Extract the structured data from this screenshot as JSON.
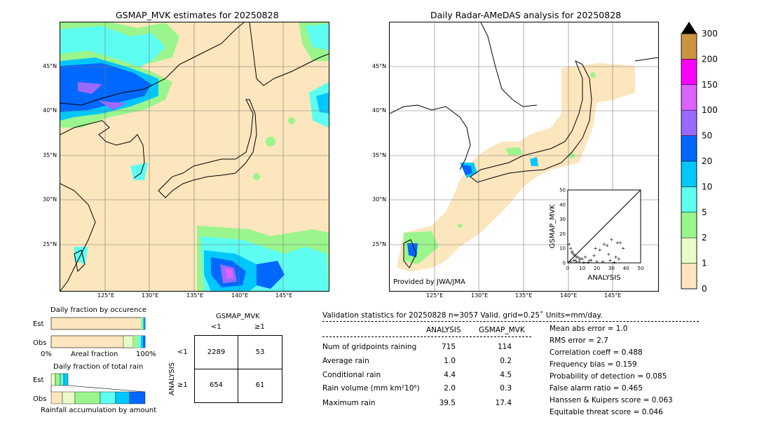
{
  "map_left": {
    "title": "GSMAP_MVK estimates for 20250828",
    "lat_labels": [
      "45°N",
      "40°N",
      "35°N",
      "30°N",
      "25°N"
    ],
    "lon_labels": [
      "125°E",
      "130°E",
      "135°E",
      "140°E",
      "145°E"
    ]
  },
  "map_right": {
    "title": "Daily Radar-AMeDAS analysis for 20250828",
    "lat_labels": [
      "45°N",
      "40°N",
      "35°N",
      "30°N",
      "25°N"
    ],
    "lon_labels": [
      "125°E",
      "130°E",
      "135°E",
      "140°E",
      "145°E"
    ],
    "credit": "Provided by JWA/JMA"
  },
  "scatter": {
    "ylabel": "GSMAP_MVK",
    "xlabel": "ANALYSIS",
    "ticks": [
      "0",
      "10",
      "20",
      "30",
      "40",
      "50"
    ]
  },
  "colorbar": {
    "labels": [
      "0",
      "1",
      "2",
      "5",
      "10",
      "20",
      "50",
      "100",
      "150",
      "200",
      "300"
    ],
    "colors": [
      "#fbe6bd",
      "#e8fbc8",
      "#9bf58d",
      "#5efdf1",
      "#00c8ff",
      "#0068ff",
      "#9a6aff",
      "#dc63ff",
      "#ff00ff",
      "#c99542"
    ]
  },
  "fraction_occurrence": {
    "title": "Daily fraction by occurence",
    "row_est": "Est",
    "row_obs": "Obs",
    "axis_left": "0%",
    "axis_mid": "Areal fraction",
    "axis_right": "100%"
  },
  "fraction_rain": {
    "title": "Daily fraction of total rain",
    "row_est": "Est",
    "row_obs": "Obs",
    "axis_label": "Rainfall accumulation by amount"
  },
  "contingency": {
    "top_label": "GSMAP_MVK",
    "col_lt": "<1",
    "col_ge": "≥1",
    "side_label": "ANALYSIS",
    "row_lt": "<1",
    "row_ge": "≥1",
    "cells": [
      "2289",
      "53",
      "654",
      "61"
    ]
  },
  "validation": {
    "header": "Validation statistics for 20250828  n=3057 Valid. grid=0.25˚ Units=mm/day.",
    "col_analysis": "ANALYSIS",
    "col_gsmap": "GSMAP_MVK",
    "rows": [
      {
        "label": "Num of gridpoints raining",
        "analysis": "715",
        "gsmap": "114"
      },
      {
        "label": "Average rain",
        "analysis": "1.0",
        "gsmap": "0.2"
      },
      {
        "label": "Conditional rain",
        "analysis": "4.4",
        "gsmap": "4.5"
      },
      {
        "label": "Rain volume (mm km²10⁶)",
        "analysis": "2.0",
        "gsmap": "0.3"
      },
      {
        "label": "Maximum rain",
        "analysis": "39.5",
        "gsmap": "17.4"
      }
    ],
    "scores": [
      "Mean abs error =    1.0",
      "RMS error =    2.7",
      "Correlation coeff =  0.488",
      "Frequency bias =  0.159",
      "Probability of detection =  0.085",
      "False alarm ratio =  0.465",
      "Hanssen & Kuipers score =  0.063",
      "Equitable threat score =  0.046"
    ]
  },
  "chart_data": {
    "type": "scatter",
    "xlabel": "ANALYSIS",
    "ylabel": "GSMAP_MVK",
    "xlim": [
      0,
      50
    ],
    "ylim": [
      0,
      50
    ],
    "x": [
      1,
      2,
      3,
      4,
      5,
      6,
      7,
      8,
      10,
      12,
      15,
      18,
      22,
      25,
      28,
      30,
      33,
      36,
      38,
      2,
      4,
      6,
      9,
      14,
      20,
      27,
      32,
      35,
      3,
      5,
      8,
      11,
      16,
      19,
      24,
      29,
      34
    ],
    "y": [
      13,
      10,
      8,
      6,
      5,
      4,
      4,
      3,
      3,
      4,
      2,
      5,
      9,
      13,
      6,
      16,
      4,
      14,
      10,
      1,
      2,
      1,
      3,
      0.5,
      1,
      12,
      0.5,
      3,
      7,
      2,
      1,
      0.5,
      2,
      10,
      1,
      2,
      14
    ]
  }
}
